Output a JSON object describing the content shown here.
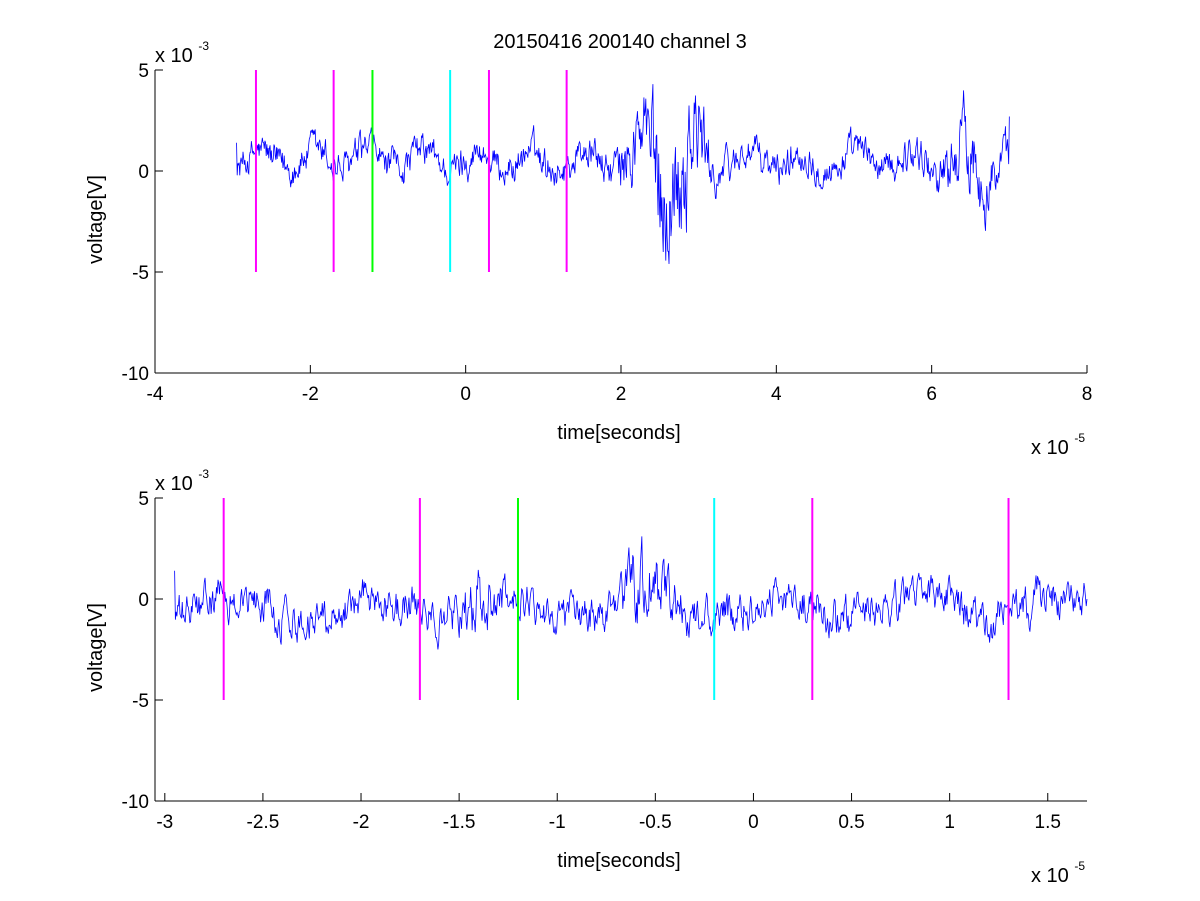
{
  "title": "20150416 200140 channel 3",
  "chart_data": [
    {
      "type": "line",
      "xlabel": "time[seconds]",
      "ylabel": "voltage[V]",
      "x_multiplier": "x 10",
      "x_exponent": "-5",
      "y_multiplier": "x 10",
      "y_exponent": "-3",
      "xlim": [
        -4,
        8
      ],
      "ylim": [
        -10,
        5
      ],
      "xticks": [
        -4,
        -2,
        0,
        2,
        4,
        6,
        8
      ],
      "xtick_labels": [
        "-4",
        "-2",
        "0",
        "2",
        "4",
        "6",
        "8"
      ],
      "yticks": [
        -10,
        -5,
        0,
        5
      ],
      "ytick_labels": [
        "-10",
        "-5",
        "0",
        "5"
      ],
      "grid": false,
      "series": [
        {
          "color": "#0000ff",
          "x_range": [
            -2.95,
            7.0
          ],
          "y_range": [
            -4.6,
            4.3
          ],
          "y_start": 1.4,
          "y_end": 2.7,
          "events": [
            {
              "x": 2.5,
              "amp": 2.6,
              "width": 0.4
            },
            {
              "x": 2.9,
              "amp": 1.8,
              "width": 0.25
            },
            {
              "x": 6.5,
              "amp": 1.4,
              "width": 0.35
            }
          ]
        }
      ],
      "markers": [
        {
          "x": -2.7,
          "color": "#ff00ff",
          "y_range": [
            -5,
            5
          ]
        },
        {
          "x": -1.7,
          "color": "#ff00ff",
          "y_range": [
            -5,
            5
          ]
        },
        {
          "x": -1.2,
          "color": "#00ff00",
          "y_range": [
            -5,
            5
          ]
        },
        {
          "x": -0.2,
          "color": "#00ffff",
          "y_range": [
            -5,
            5
          ]
        },
        {
          "x": 0.3,
          "color": "#ff00ff",
          "y_range": [
            -5,
            5
          ]
        },
        {
          "x": 1.3,
          "color": "#ff00ff",
          "y_range": [
            -5,
            5
          ]
        }
      ]
    },
    {
      "type": "line",
      "xlabel": "time[seconds]",
      "ylabel": "voltage[V]",
      "x_multiplier": "x 10",
      "x_exponent": "-5",
      "y_multiplier": "x 10",
      "y_exponent": "-3",
      "xlim": [
        -3.05,
        1.7
      ],
      "ylim": [
        -10,
        5
      ],
      "xticks": [
        -3,
        -2.5,
        -2,
        -1.5,
        -1,
        -0.5,
        0,
        0.5,
        1,
        1.5
      ],
      "xtick_labels": [
        "-3",
        "-2.5",
        "-2",
        "-1.5",
        "-1",
        "-0.5",
        "0",
        "0.5",
        "1",
        "1.5"
      ],
      "yticks": [
        -10,
        -5,
        0,
        5
      ],
      "ytick_labels": [
        "-10",
        "-5",
        "0",
        "5"
      ],
      "grid": false,
      "series": [
        {
          "color": "#0000ff",
          "x_range": [
            -2.95,
            1.7
          ],
          "y_range": [
            -2.5,
            3.1
          ],
          "y_start": 1.4,
          "y_end": 0.0,
          "events": [
            {
              "x": -0.55,
              "amp": 1.2,
              "width": 0.1
            },
            {
              "x": -1.4,
              "amp": 0.8,
              "width": 0.08
            }
          ]
        }
      ],
      "markers": [
        {
          "x": -2.7,
          "color": "#ff00ff",
          "y_range": [
            -5,
            5
          ]
        },
        {
          "x": -1.7,
          "color": "#ff00ff",
          "y_range": [
            -5,
            5
          ]
        },
        {
          "x": -1.2,
          "color": "#00ff00",
          "y_range": [
            -5,
            5
          ]
        },
        {
          "x": -0.2,
          "color": "#00ffff",
          "y_range": [
            -5,
            5
          ]
        },
        {
          "x": 0.3,
          "color": "#ff00ff",
          "y_range": [
            -5,
            5
          ]
        },
        {
          "x": 1.3,
          "color": "#ff00ff",
          "y_range": [
            -5,
            5
          ]
        }
      ]
    }
  ]
}
